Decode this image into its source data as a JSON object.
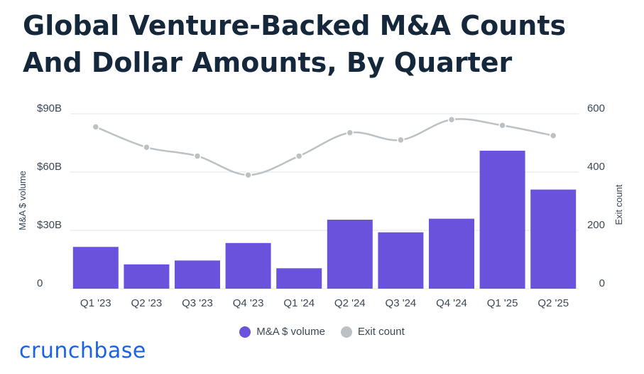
{
  "title": "Global Venture-Backed M&A Counts And Dollar Amounts, By Quarter",
  "brand": "crunchbase",
  "colors": {
    "bar": "#6b52dc",
    "line": "#bcc1c6",
    "grid": "#e3e6e9",
    "title": "#14273b",
    "brand": "#1a63e8"
  },
  "chart_data": {
    "type": "bar",
    "title": "Global Venture-Backed M&A Counts And Dollar Amounts, By Quarter",
    "categories": [
      "Q1 '23",
      "Q2 '23",
      "Q3 '23",
      "Q4 '23",
      "Q1 '24",
      "Q2 '24",
      "Q3 '24",
      "Q4 '24",
      "Q1 '25",
      "Q2 '25"
    ],
    "series": [
      {
        "name": "M&A $ volume",
        "type": "bar",
        "axis": "left",
        "values": [
          21.5,
          12.5,
          14.5,
          23.5,
          10.5,
          35.5,
          29,
          36,
          71,
          51
        ]
      },
      {
        "name": "Exit count",
        "type": "line",
        "axis": "right",
        "values": [
          555,
          485,
          455,
          390,
          455,
          535,
          510,
          580,
          560,
          525
        ]
      }
    ],
    "ylabel": "M&A $ volume",
    "y2label": "Exit count",
    "ylim": [
      0,
      90
    ],
    "y2lim": [
      0,
      600
    ],
    "yticks": [
      "0",
      "$30B",
      "$60B",
      "$90B"
    ],
    "y2ticks": [
      "0",
      "200",
      "400",
      "600"
    ],
    "grid": true,
    "legend": "bottom-center"
  }
}
